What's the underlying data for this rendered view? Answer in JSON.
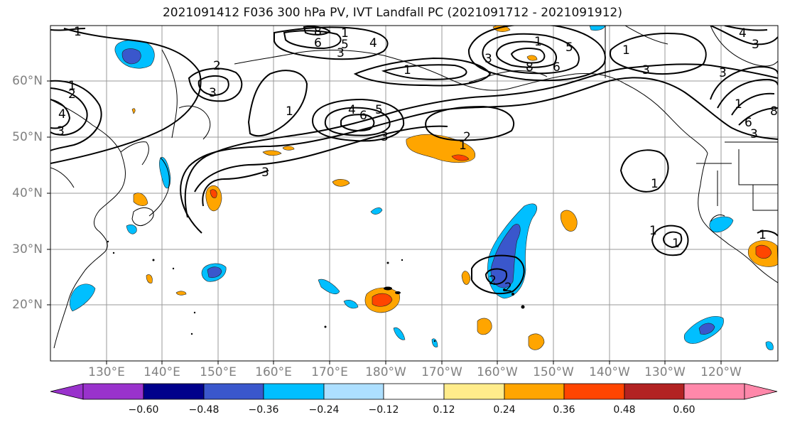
{
  "title": "2021091412 F036 300 hPa PV, IVT Landfall PC (2021091712 - 2021091912)",
  "lat_labels": [
    "60°N",
    "50°N",
    "40°N",
    "30°N",
    "20°N"
  ],
  "lon_labels": [
    "130°E",
    "140°E",
    "150°E",
    "160°E",
    "170°E",
    "180°W",
    "170°W",
    "160°W",
    "150°W",
    "140°W",
    "130°W",
    "120°W"
  ],
  "colorbar": {
    "ticks": [
      "−0.60",
      "−0.48",
      "−0.36",
      "−0.24",
      "−0.12",
      "0.12",
      "0.24",
      "0.36",
      "0.48",
      "0.60"
    ],
    "colors": [
      "#9932CC",
      "#00008B",
      "#3A57CC",
      "#00BFFF",
      "#ADDFFF",
      "#FFFFFF",
      "#FFEC8B",
      "#FFA500",
      "#FF4500",
      "#B22222",
      "#FF88AA"
    ]
  },
  "contour_labels": [
    "1",
    "2",
    "3",
    "4",
    "5",
    "6",
    "8"
  ]
}
